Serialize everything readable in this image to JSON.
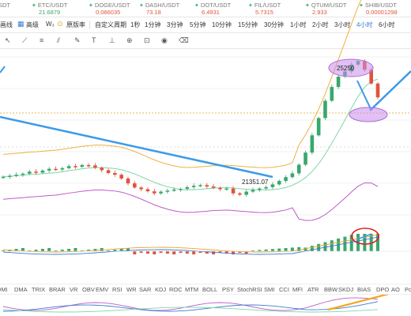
{
  "ticker": [
    {
      "symbol": "SDT",
      "price": "",
      "up": false
    },
    {
      "symbol": "ETC/USDT",
      "price": "21.6879",
      "up": true
    },
    {
      "symbol": "DOGE/USDT",
      "price": "0.086035",
      "up": false
    },
    {
      "symbol": "DASH/USDT",
      "price": "73.18",
      "up": false
    },
    {
      "symbol": "DOT/USDT",
      "price": "6.4931",
      "up": false
    },
    {
      "symbol": "FIL/USDT",
      "price": "5.7315",
      "up": false
    },
    {
      "symbol": "QTUM/USDT",
      "price": "2.933",
      "up": false
    },
    {
      "symbol": "SHIB/USDT",
      "price": "0.00001298",
      "up": false
    }
  ],
  "toolbar": {
    "draw_label": "画线",
    "advanced_label": "高级",
    "advanced_icon": "grid-icon",
    "indicator_label": "W₃",
    "original_label": "原版率",
    "custom_period_label": "自定义周期",
    "periods": [
      "1秒",
      "1分钟",
      "3分钟",
      "5分钟",
      "10分钟",
      "15分钟",
      "30分钟",
      "1小时",
      "2小时",
      "3小时",
      "4小时",
      "6小时"
    ],
    "active_period": "4小时"
  },
  "annotations": {
    "high_label": "25250",
    "low_label": "21351.07"
  },
  "indicator_tabs": [
    "DMI",
    "DMA",
    "TRIX",
    "BRAR",
    "VR",
    "OBV",
    "EMV",
    "RSI",
    "WR",
    "SAR",
    "KDJ",
    "ROC",
    "MTM",
    "BOLL",
    "PSY",
    "StochRSI",
    "SMI",
    "CCI",
    "MFI",
    "ATR",
    "BBW",
    "SKDJ",
    "BIAS",
    "DPO",
    "AO",
    "Po"
  ],
  "colors": {
    "up": "#3aa76d",
    "down": "#e0543b",
    "accent": "#3a7bd5",
    "trendline": "#3b9bea",
    "highlight": "#b36ad8",
    "circle": "#e02020",
    "trend_yellow": "#f5a623"
  },
  "chart_data": {
    "type": "candlestick",
    "series": [
      {
        "name": "",
        "values": [
          21900,
          21930,
          21960,
          21990,
          22050,
          22020,
          22080,
          22130,
          22110,
          22150,
          22210,
          22190,
          22240,
          22230,
          22160,
          22090,
          22010,
          21960,
          21850,
          21710,
          21590,
          21540,
          21480,
          21420,
          21470,
          21500,
          21530,
          21550,
          21600,
          21640,
          21660,
          21620,
          21580,
          21540,
          21560,
          21420,
          21380,
          21470,
          21520,
          21560,
          21600,
          21680,
          21780,
          21890,
          22000,
          22250,
          22600,
          23100,
          23600,
          24100,
          24500,
          24800,
          24950,
          25150,
          25250,
          25000,
          24600,
          24200
        ]
      }
    ],
    "annotations": {
      "high": 25250,
      "low": 21351.07
    },
    "grid": true
  }
}
